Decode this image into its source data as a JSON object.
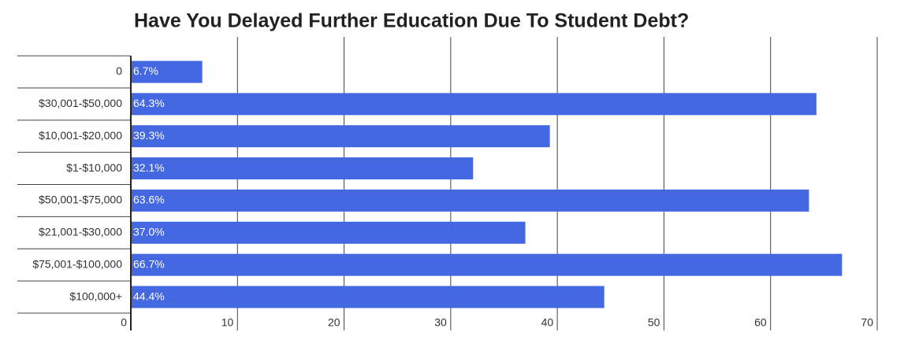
{
  "chart_data": {
    "type": "bar",
    "orientation": "horizontal",
    "title": "Have You Delayed Further Education Due To Student Debt?",
    "categories": [
      "0",
      "$30,001-$50,000",
      "$10,001-$20,000",
      "$1-$10,000",
      "$50,001-$75,000",
      "$21,001-$30,000",
      "$75,001-$100,000",
      "$100,000+"
    ],
    "values": [
      6.7,
      64.3,
      39.3,
      32.1,
      63.6,
      37.0,
      66.7,
      44.4
    ],
    "value_labels": [
      "6.7%",
      "64.3%",
      "39.3%",
      "32.1%",
      "63.6%",
      "37.0%",
      "66.7%",
      "44.4%"
    ],
    "color": "#4467e2",
    "xlim": [
      0,
      70
    ],
    "xticks": [
      0,
      10,
      20,
      30,
      40,
      50,
      60,
      70
    ],
    "grid": true
  }
}
